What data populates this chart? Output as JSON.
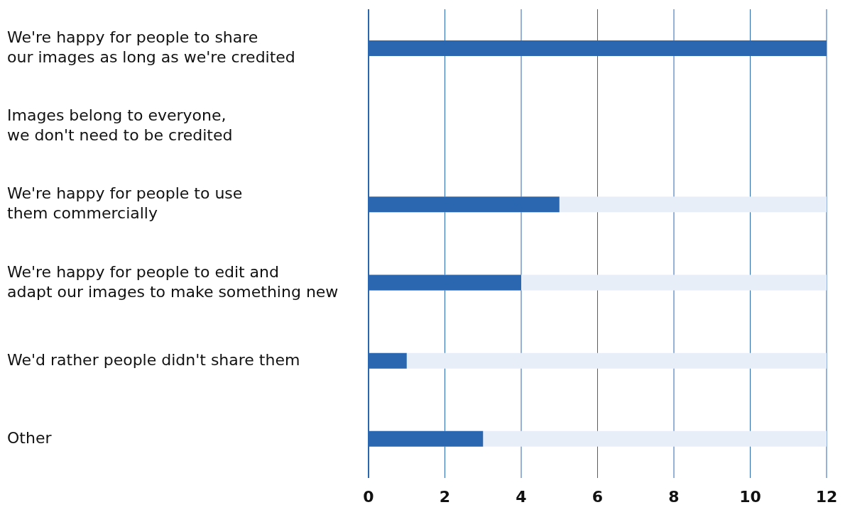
{
  "chart_data": {
    "type": "bar",
    "orientation": "horizontal",
    "categories": [
      "We're happy for people to share\nour images as long as we're credited",
      "Images belong to everyone,\nwe don't need to be credited",
      "We're happy for people to use\nthem commercially",
      "We're happy for people to edit and\nadapt our images to make something new",
      "We'd rather people didn't share them",
      "Other"
    ],
    "values": [
      12,
      0,
      5,
      4,
      1,
      3
    ],
    "color": "#2b67b1",
    "xlim": [
      0,
      12
    ],
    "xticks": [
      0,
      2,
      4,
      6,
      8,
      10,
      12
    ],
    "grid": "x",
    "legend": false
  }
}
